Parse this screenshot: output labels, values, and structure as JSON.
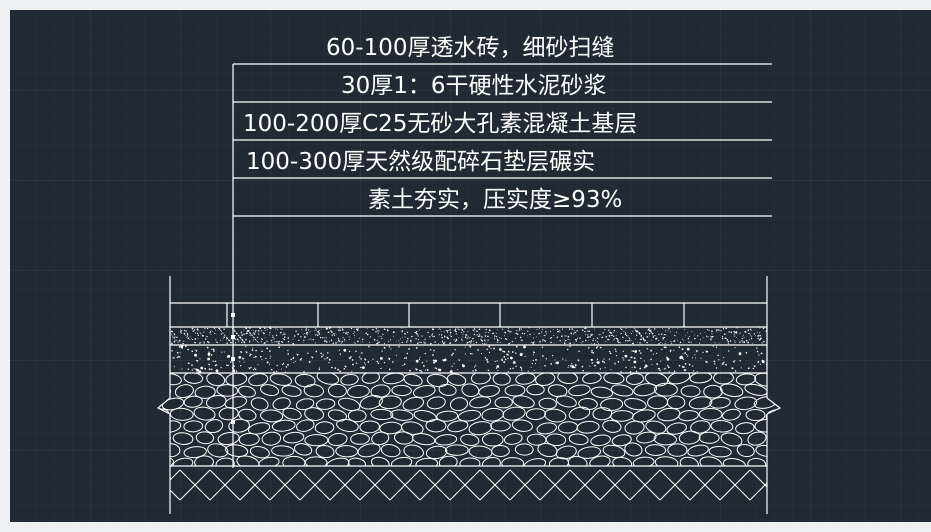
{
  "layers": [
    {
      "label": "60-100厚透水砖，细砂扫缝"
    },
    {
      "label": "30厚1：6干硬性水泥砂浆"
    },
    {
      "label": "100-200厚C25无砂大孔素混凝土基层"
    },
    {
      "label": "100-300厚天然级配碎石垫层碾实"
    },
    {
      "label": "素土夯实，压实度≥93%"
    }
  ],
  "colors": {
    "canvas": "#222834",
    "grid_minor": "#2b313c",
    "grid_major": "#343a47",
    "line": "#ffffff",
    "frame": "#eef0f2"
  }
}
